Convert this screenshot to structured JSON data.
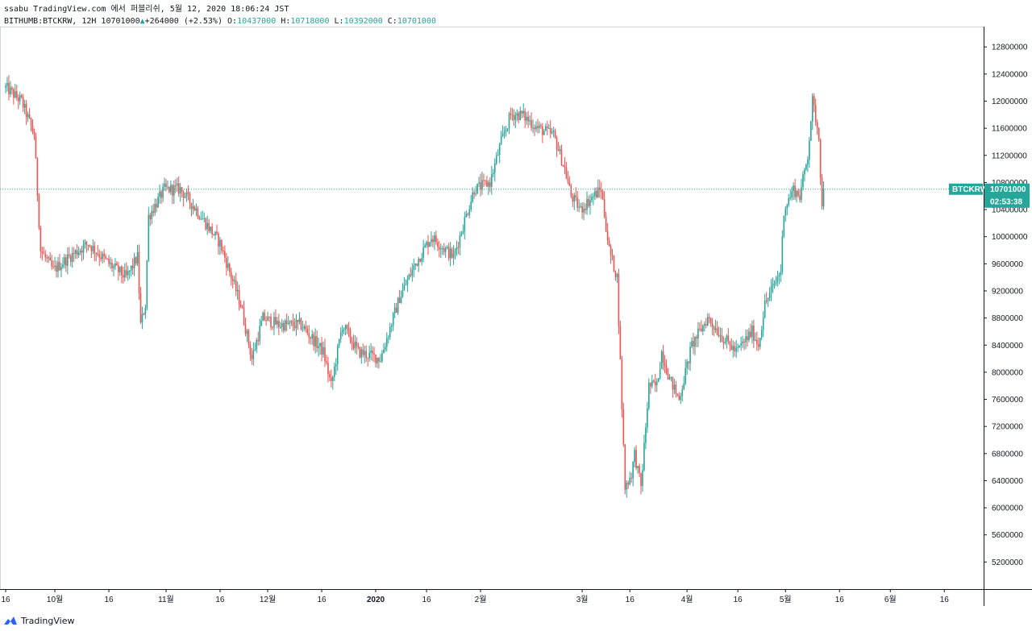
{
  "header": {
    "line1": "ssabu TradingView.com 에서 퍼블리쉬, 5월 12, 2020 18:06:24 JST",
    "symbol": "BITHUMB:BTCKRW, 12H",
    "price": "10701000",
    "arrow": "▲",
    "change": "+264000",
    "change_pct": "(+2.53%)",
    "o_label": "O:",
    "o": "10437000",
    "h_label": "H:",
    "h": "10718000",
    "l_label": "L:",
    "l": "10392000",
    "c_label": "C:",
    "c": "10701000"
  },
  "colors": {
    "up": "#26a69a",
    "down": "#ef5350",
    "axis": "#131722",
    "price_line": "#26a69a"
  },
  "chart_data": {
    "type": "candlestick",
    "symbol": "BTCKRW",
    "interval": "12H",
    "current_price": 10701000,
    "price_label": "BTCKRW",
    "price_value": "10701000",
    "countdown": "02:53:38",
    "ylim": [
      4800000,
      13100000
    ],
    "y_ticks": [
      5200000,
      5600000,
      6000000,
      6400000,
      6800000,
      7200000,
      7600000,
      8000000,
      8400000,
      8800000,
      9200000,
      9600000,
      10000000,
      10400000,
      10800000,
      11200000,
      11600000,
      12000000,
      12400000,
      12800000
    ],
    "x_ticks": [
      {
        "i": 0,
        "label": "16"
      },
      {
        "i": 31,
        "label": "10월"
      },
      {
        "i": 65,
        "label": "16"
      },
      {
        "i": 101,
        "label": "11월"
      },
      {
        "i": 135,
        "label": "16"
      },
      {
        "i": 165,
        "label": "12월"
      },
      {
        "i": 199,
        "label": "16"
      },
      {
        "i": 233,
        "label": "2020"
      },
      {
        "i": 265,
        "label": "16"
      },
      {
        "i": 299,
        "label": "2월"
      },
      {
        "i": 363,
        "label": "3월"
      },
      {
        "i": 393,
        "label": "16"
      },
      {
        "i": 429,
        "label": "4월"
      },
      {
        "i": 461,
        "label": "16"
      },
      {
        "i": 491,
        "label": "5월"
      },
      {
        "i": 525,
        "label": "16"
      },
      {
        "i": 557,
        "label": "6월"
      },
      {
        "i": 591,
        "label": "16"
      }
    ],
    "candle_count": 516,
    "price_path": [
      [
        0,
        12200000
      ],
      [
        10,
        12000000
      ],
      [
        18,
        11500000
      ],
      [
        22,
        9800000
      ],
      [
        30,
        9500000
      ],
      [
        40,
        9700000
      ],
      [
        52,
        9900000
      ],
      [
        65,
        9600000
      ],
      [
        76,
        9400000
      ],
      [
        83,
        9700000
      ],
      [
        85,
        8700000
      ],
      [
        88,
        9000000
      ],
      [
        90,
        10300000
      ],
      [
        100,
        10700000
      ],
      [
        110,
        10700000
      ],
      [
        120,
        10400000
      ],
      [
        135,
        9900000
      ],
      [
        148,
        9000000
      ],
      [
        155,
        8200000
      ],
      [
        162,
        8800000
      ],
      [
        172,
        8700000
      ],
      [
        186,
        8700000
      ],
      [
        200,
        8300000
      ],
      [
        205,
        7800000
      ],
      [
        212,
        8700000
      ],
      [
        222,
        8300000
      ],
      [
        236,
        8200000
      ],
      [
        248,
        9100000
      ],
      [
        258,
        9600000
      ],
      [
        268,
        10000000
      ],
      [
        282,
        9700000
      ],
      [
        295,
        10700000
      ],
      [
        305,
        10800000
      ],
      [
        312,
        11400000
      ],
      [
        318,
        11800000
      ],
      [
        325,
        11800000
      ],
      [
        335,
        11600000
      ],
      [
        345,
        11500000
      ],
      [
        352,
        11000000
      ],
      [
        356,
        10600000
      ],
      [
        362,
        10400000
      ],
      [
        370,
        10600000
      ],
      [
        375,
        10700000
      ],
      [
        380,
        9800000
      ],
      [
        385,
        9400000
      ],
      [
        388,
        7500000
      ],
      [
        390,
        6300000
      ],
      [
        394,
        6500000
      ],
      [
        396,
        6800000
      ],
      [
        400,
        6300000
      ],
      [
        405,
        7800000
      ],
      [
        410,
        7800000
      ],
      [
        413,
        8300000
      ],
      [
        418,
        7900000
      ],
      [
        424,
        7600000
      ],
      [
        432,
        8400000
      ],
      [
        442,
        8800000
      ],
      [
        452,
        8500000
      ],
      [
        460,
        8300000
      ],
      [
        470,
        8600000
      ],
      [
        474,
        8400000
      ],
      [
        478,
        9000000
      ],
      [
        488,
        9500000
      ],
      [
        490,
        10400000
      ],
      [
        496,
        10700000
      ],
      [
        500,
        10600000
      ],
      [
        505,
        11200000
      ],
      [
        508,
        12000000
      ],
      [
        512,
        11500000
      ],
      [
        514,
        10400000
      ],
      [
        515,
        10701000
      ]
    ]
  },
  "footer": {
    "brand": "TradingView"
  }
}
